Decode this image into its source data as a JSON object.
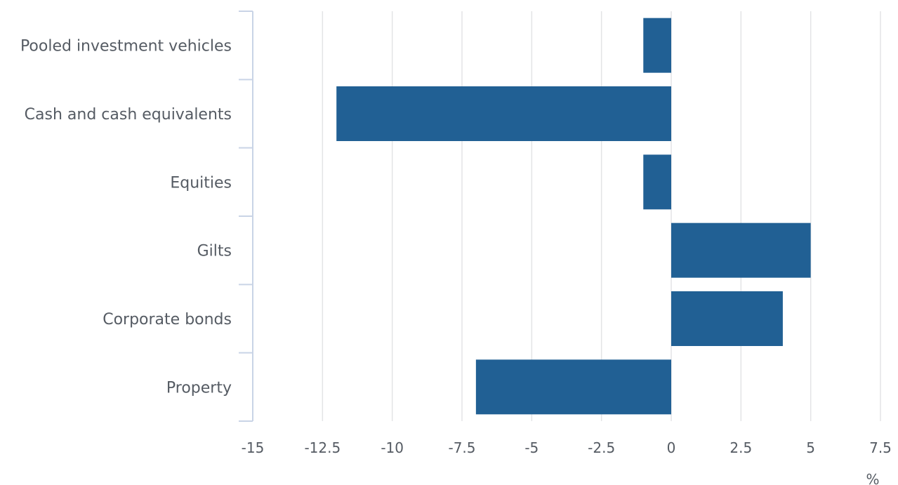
{
  "chart_data": {
    "type": "bar",
    "orientation": "horizontal",
    "categories": [
      "Pooled investment vehicles",
      "Cash and cash equivalents",
      "Equities",
      "Gilts",
      "Corporate bonds",
      "Property"
    ],
    "values": [
      -1,
      -12,
      -1,
      5,
      4,
      -7
    ],
    "xlim": [
      -15,
      7.5
    ],
    "xticks": [
      -15,
      -12.5,
      -10,
      -7.5,
      -5,
      -2.5,
      0,
      2.5,
      5,
      7.5
    ],
    "xtick_labels": [
      "-15",
      "-12.5",
      "-10",
      "-7.5",
      "-5",
      "-2.5",
      "0",
      "2.5",
      "5",
      "7.5"
    ],
    "unit_label": "%",
    "grid": "vertical",
    "bar_color": "#216094",
    "grid_color": "#e3e4e6",
    "axis_color": "#c9d4e6",
    "text_color": "#555b63"
  }
}
